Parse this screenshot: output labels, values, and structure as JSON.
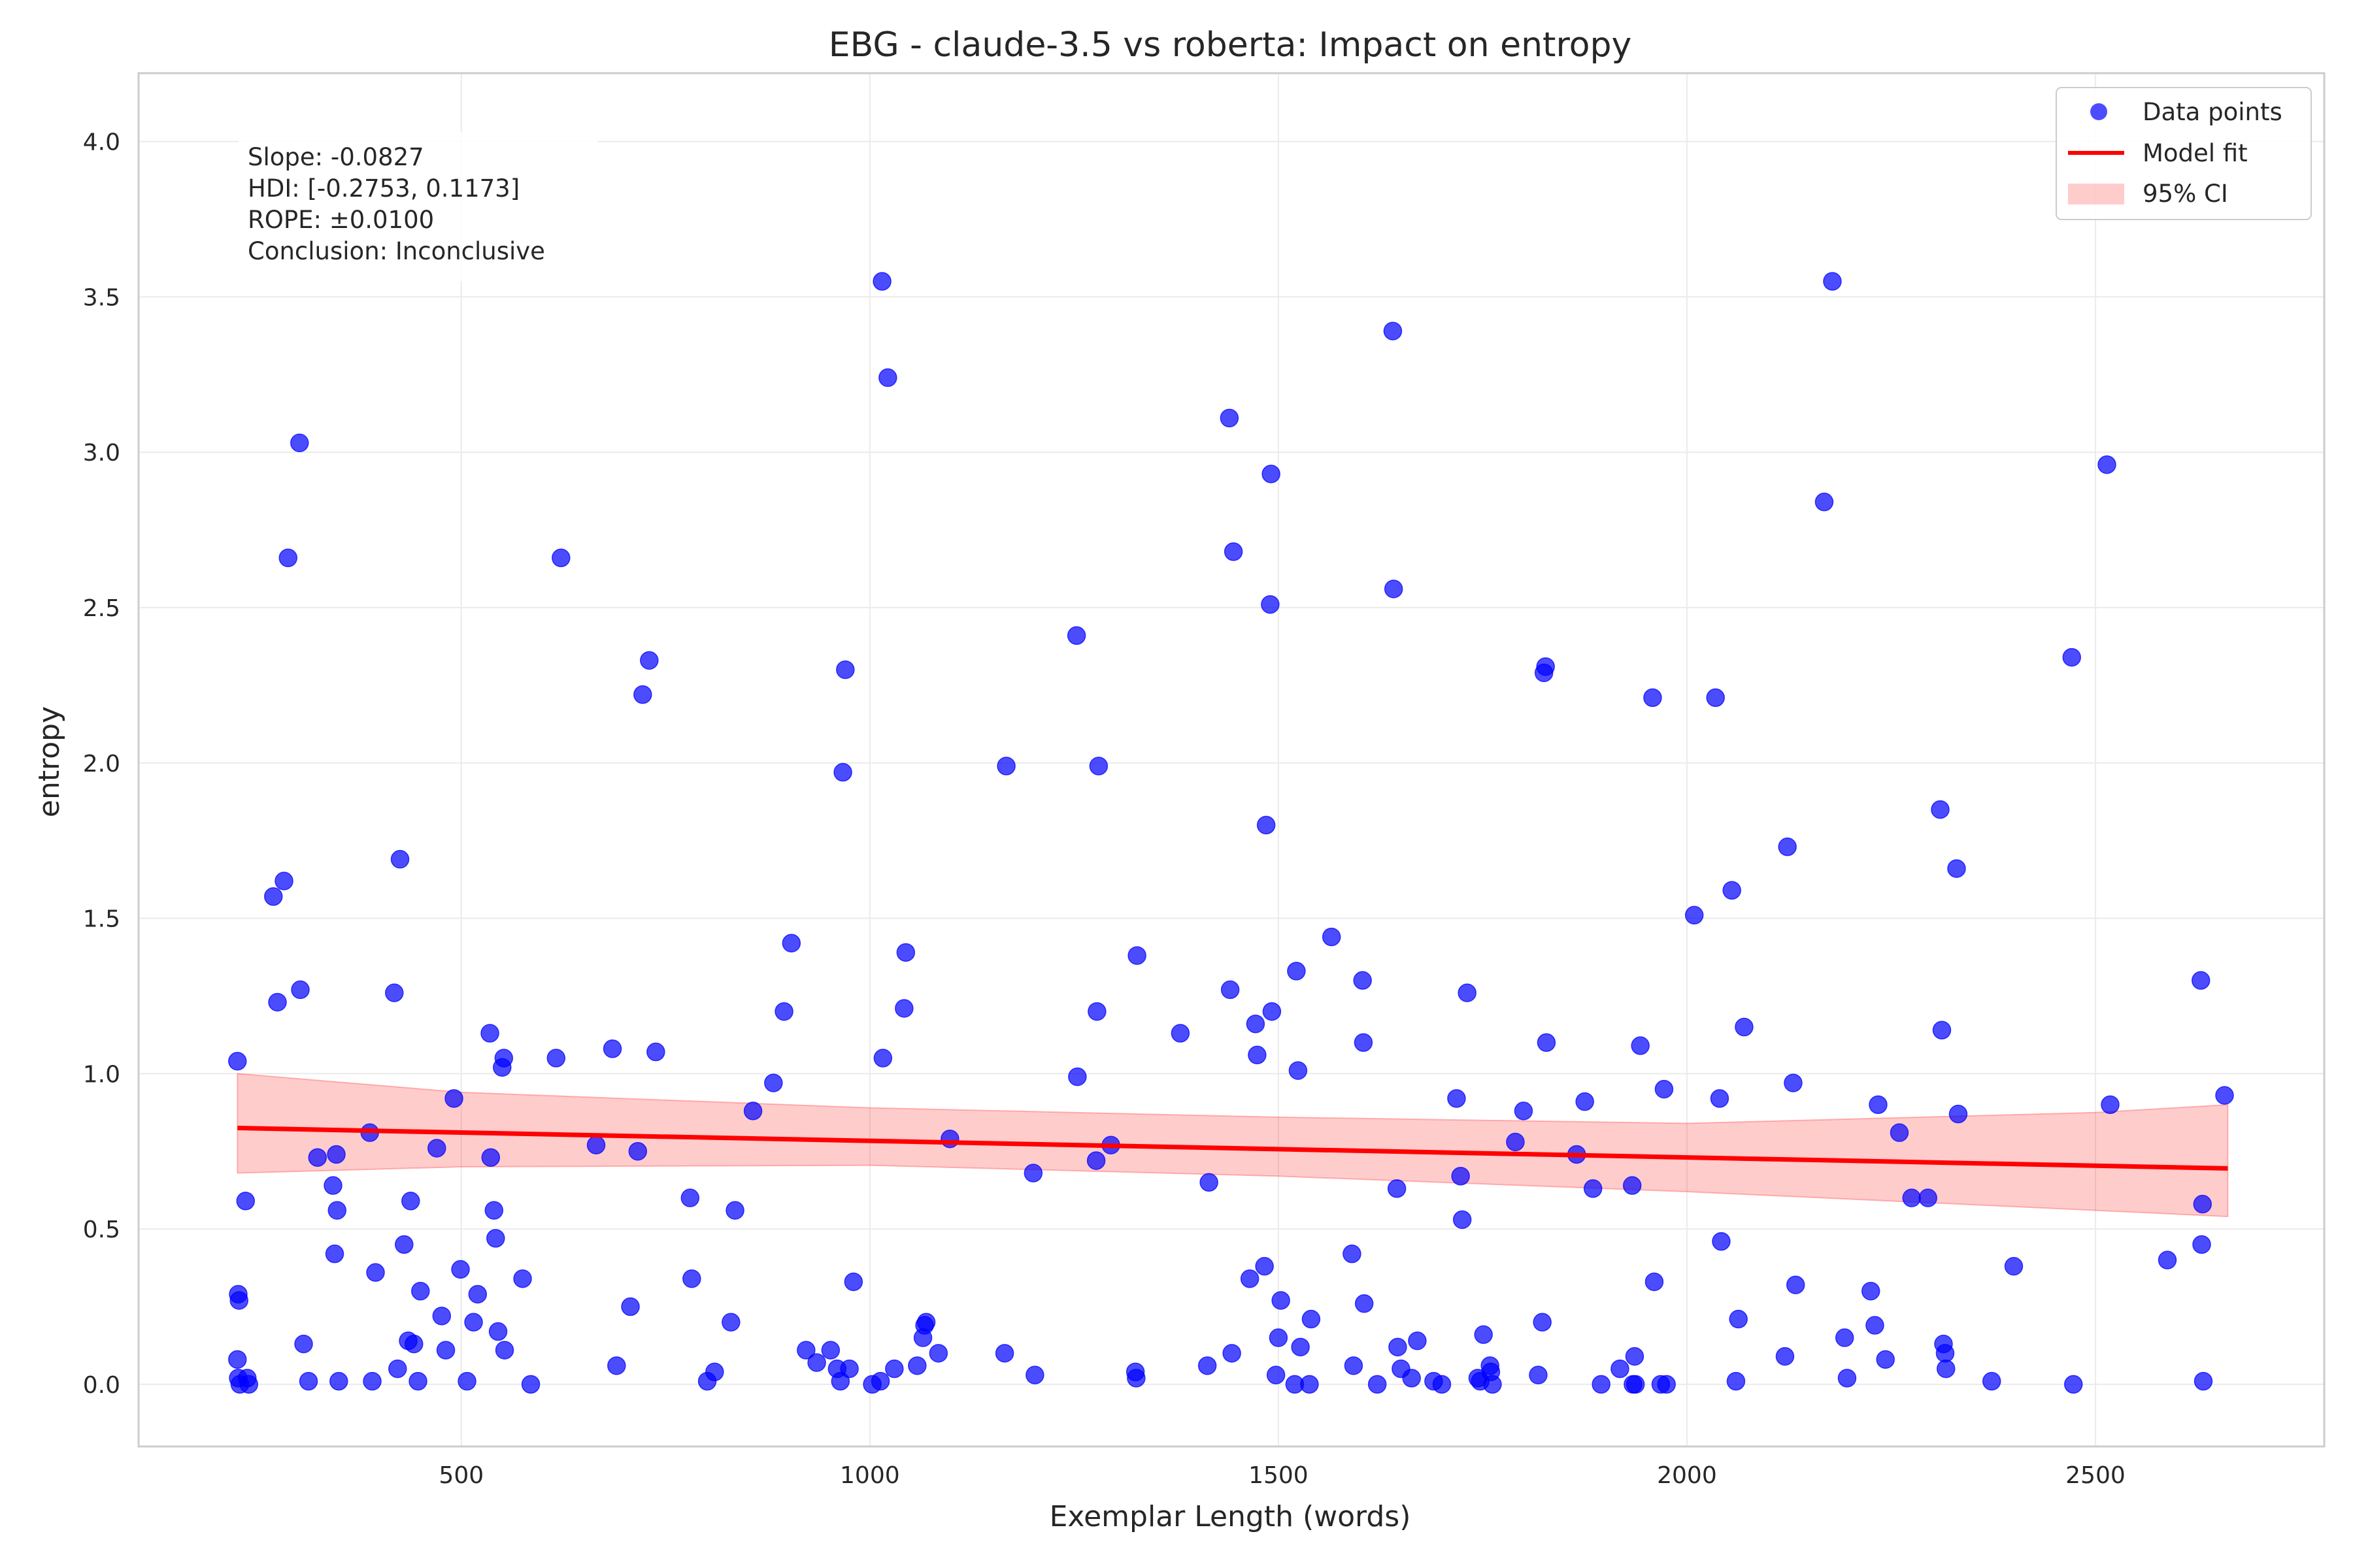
{
  "chart_data": {
    "type": "scatter",
    "title": "EBG - claude-3.5 vs roberta: Impact on entropy",
    "xlabel": "Exemplar Length (words)",
    "ylabel": "entropy",
    "xlim": [
      105,
      2780
    ],
    "ylim": [
      -0.2,
      4.22
    ],
    "xticks": [
      500,
      1000,
      1500,
      2000,
      2500
    ],
    "xtick_labels": [
      "500",
      "1000",
      "1500",
      "2000",
      "2500"
    ],
    "yticks": [
      0.0,
      0.5,
      1.0,
      1.5,
      2.0,
      2.5,
      3.0,
      3.5,
      4.0
    ],
    "ytick_labels": [
      "0.0",
      "0.5",
      "1.0",
      "1.5",
      "2.0",
      "2.5",
      "3.0",
      "3.5",
      "4.0"
    ],
    "grid": true,
    "legend_position": "top-right",
    "legend": [
      "Data points",
      "Model fit",
      "95% CI"
    ],
    "annotation": [
      "Slope: -0.0827",
      "HDI: [-0.2753, 0.1173]",
      "ROPE: ±0.0100",
      "Conclusion: Inconclusive"
    ],
    "colors": {
      "points": "#0000ff",
      "fit": "#ff0000",
      "ci": "#ff0000"
    },
    "fit_line": {
      "x": [
        226,
        2662
      ],
      "y": [
        0.825,
        0.695
      ]
    },
    "ci_band": {
      "x": [
        226,
        500,
        1000,
        1500,
        2000,
        2500,
        2662
      ],
      "upper": [
        1.0,
        0.94,
        0.89,
        0.86,
        0.84,
        0.875,
        0.9
      ],
      "lower": [
        0.68,
        0.7,
        0.705,
        0.67,
        0.62,
        0.56,
        0.54
      ]
    },
    "series": [
      {
        "name": "Data points",
        "points": [
          [
            226,
            1.04
          ],
          [
            227,
            0.29
          ],
          [
            228,
            0.27
          ],
          [
            226,
            0.08
          ],
          [
            227,
            0.02
          ],
          [
            229,
            0.0
          ],
          [
            236,
            0.59
          ],
          [
            238,
            0.02
          ],
          [
            240,
            0.0
          ],
          [
            270,
            1.57
          ],
          [
            275,
            1.23
          ],
          [
            283,
            1.62
          ],
          [
            288,
            2.66
          ],
          [
            302,
            3.03
          ],
          [
            303,
            1.27
          ],
          [
            307,
            0.13
          ],
          [
            313,
            0.01
          ],
          [
            324,
            0.73
          ],
          [
            343,
            0.64
          ],
          [
            345,
            0.42
          ],
          [
            347,
            0.74
          ],
          [
            348,
            0.56
          ],
          [
            350,
            0.01
          ],
          [
            388,
            0.81
          ],
          [
            391,
            0.01
          ],
          [
            395,
            0.36
          ],
          [
            418,
            1.26
          ],
          [
            422,
            0.05
          ],
          [
            425,
            1.69
          ],
          [
            430,
            0.45
          ],
          [
            435,
            0.14
          ],
          [
            438,
            0.59
          ],
          [
            442,
            0.13
          ],
          [
            447,
            0.01
          ],
          [
            450,
            0.3
          ],
          [
            470,
            0.76
          ],
          [
            476,
            0.22
          ],
          [
            481,
            0.11
          ],
          [
            491,
            0.92
          ],
          [
            499,
            0.37
          ],
          [
            507,
            0.01
          ],
          [
            515,
            0.2
          ],
          [
            520,
            0.29
          ],
          [
            535,
            1.13
          ],
          [
            536,
            0.73
          ],
          [
            540,
            0.56
          ],
          [
            542,
            0.47
          ],
          [
            545,
            0.17
          ],
          [
            550,
            1.02
          ],
          [
            552,
            1.05
          ],
          [
            553,
            0.11
          ],
          [
            575,
            0.34
          ],
          [
            585,
            0.0
          ],
          [
            616,
            1.05
          ],
          [
            622,
            2.66
          ],
          [
            665,
            0.77
          ],
          [
            685,
            1.08
          ],
          [
            690,
            0.06
          ],
          [
            707,
            0.25
          ],
          [
            716,
            0.75
          ],
          [
            722,
            2.22
          ],
          [
            730,
            2.33
          ],
          [
            738,
            1.07
          ],
          [
            780,
            0.6
          ],
          [
            782,
            0.34
          ],
          [
            801,
            0.01
          ],
          [
            810,
            0.04
          ],
          [
            830,
            0.2
          ],
          [
            835,
            0.56
          ],
          [
            857,
            0.88
          ],
          [
            882,
            0.97
          ],
          [
            895,
            1.2
          ],
          [
            904,
            1.42
          ],
          [
            922,
            0.11
          ],
          [
            935,
            0.07
          ],
          [
            952,
            0.11
          ],
          [
            960,
            0.05
          ],
          [
            964,
            0.01
          ],
          [
            967,
            1.97
          ],
          [
            970,
            2.3
          ],
          [
            975,
            0.05
          ],
          [
            980,
            0.33
          ],
          [
            1003,
            0.0
          ],
          [
            1013,
            0.01
          ],
          [
            1015,
            3.55
          ],
          [
            1016,
            1.05
          ],
          [
            1022,
            3.24
          ],
          [
            1030,
            0.05
          ],
          [
            1042,
            1.21
          ],
          [
            1044,
            1.39
          ],
          [
            1058,
            0.06
          ],
          [
            1065,
            0.15
          ],
          [
            1067,
            0.19
          ],
          [
            1069,
            0.2
          ],
          [
            1084,
            0.1
          ],
          [
            1098,
            0.79
          ],
          [
            1165,
            0.1
          ],
          [
            1167,
            1.99
          ],
          [
            1200,
            0.68
          ],
          [
            1202,
            0.03
          ],
          [
            1253,
            2.41
          ],
          [
            1254,
            0.99
          ],
          [
            1277,
            0.72
          ],
          [
            1278,
            1.2
          ],
          [
            1280,
            1.99
          ],
          [
            1295,
            0.77
          ],
          [
            1325,
            0.04
          ],
          [
            1326,
            0.02
          ],
          [
            1327,
            1.38
          ],
          [
            1380,
            1.13
          ],
          [
            1413,
            0.06
          ],
          [
            1415,
            0.65
          ],
          [
            1440,
            3.11
          ],
          [
            1441,
            1.27
          ],
          [
            1443,
            0.1
          ],
          [
            1445,
            2.68
          ],
          [
            1465,
            0.34
          ],
          [
            1472,
            1.16
          ],
          [
            1474,
            1.06
          ],
          [
            1483,
            0.38
          ],
          [
            1485,
            1.8
          ],
          [
            1490,
            2.51
          ],
          [
            1491,
            2.93
          ],
          [
            1492,
            1.2
          ],
          [
            1497,
            0.03
          ],
          [
            1500,
            0.15
          ],
          [
            1503,
            0.27
          ],
          [
            1520,
            0.0
          ],
          [
            1522,
            1.33
          ],
          [
            1524,
            1.01
          ],
          [
            1527,
            0.12
          ],
          [
            1538,
            0.0
          ],
          [
            1540,
            0.21
          ],
          [
            1565,
            1.44
          ],
          [
            1590,
            0.42
          ],
          [
            1592,
            0.06
          ],
          [
            1603,
            1.3
          ],
          [
            1604,
            1.1
          ],
          [
            1605,
            0.26
          ],
          [
            1621,
            0.0
          ],
          [
            1640,
            3.39
          ],
          [
            1641,
            2.56
          ],
          [
            1645,
            0.63
          ],
          [
            1646,
            0.12
          ],
          [
            1650,
            0.05
          ],
          [
            1663,
            0.02
          ],
          [
            1670,
            0.14
          ],
          [
            1690,
            0.01
          ],
          [
            1700,
            0.0
          ],
          [
            1718,
            0.92
          ],
          [
            1723,
            0.67
          ],
          [
            1725,
            0.53
          ],
          [
            1731,
            1.26
          ],
          [
            1744,
            0.02
          ],
          [
            1747,
            0.01
          ],
          [
            1751,
            0.16
          ],
          [
            1759,
            0.06
          ],
          [
            1760,
            0.04
          ],
          [
            1762,
            0.0
          ],
          [
            1790,
            0.78
          ],
          [
            1800,
            0.88
          ],
          [
            1818,
            0.03
          ],
          [
            1823,
            0.2
          ],
          [
            1825,
            2.29
          ],
          [
            1827,
            2.31
          ],
          [
            1828,
            1.1
          ],
          [
            1865,
            0.74
          ],
          [
            1875,
            0.91
          ],
          [
            1885,
            0.63
          ],
          [
            1895,
            0.0
          ],
          [
            1918,
            0.05
          ],
          [
            1933,
            0.64
          ],
          [
            1934,
            0.0
          ],
          [
            1936,
            0.09
          ],
          [
            1937,
            0.0
          ],
          [
            1943,
            1.09
          ],
          [
            1958,
            2.21
          ],
          [
            1960,
            0.33
          ],
          [
            1968,
            0.0
          ],
          [
            1972,
            0.95
          ],
          [
            1975,
            0.0
          ],
          [
            2009,
            1.51
          ],
          [
            2035,
            2.21
          ],
          [
            2040,
            0.92
          ],
          [
            2042,
            0.46
          ],
          [
            2055,
            1.59
          ],
          [
            2060,
            0.01
          ],
          [
            2063,
            0.21
          ],
          [
            2070,
            1.15
          ],
          [
            2120,
            0.09
          ],
          [
            2123,
            1.73
          ],
          [
            2130,
            0.97
          ],
          [
            2133,
            0.32
          ],
          [
            2168,
            2.84
          ],
          [
            2178,
            3.55
          ],
          [
            2193,
            0.15
          ],
          [
            2196,
            0.02
          ],
          [
            2225,
            0.3
          ],
          [
            2230,
            0.19
          ],
          [
            2234,
            0.9
          ],
          [
            2243,
            0.08
          ],
          [
            2260,
            0.81
          ],
          [
            2275,
            0.6
          ],
          [
            2295,
            0.6
          ],
          [
            2310,
            1.85
          ],
          [
            2312,
            1.14
          ],
          [
            2314,
            0.13
          ],
          [
            2316,
            0.1
          ],
          [
            2317,
            0.05
          ],
          [
            2330,
            1.66
          ],
          [
            2332,
            0.87
          ],
          [
            2373,
            0.01
          ],
          [
            2400,
            0.38
          ],
          [
            2471,
            2.34
          ],
          [
            2473,
            0.0
          ],
          [
            2514,
            2.96
          ],
          [
            2518,
            0.9
          ],
          [
            2588,
            0.4
          ],
          [
            2629,
            1.3
          ],
          [
            2630,
            0.45
          ],
          [
            2631,
            0.58
          ],
          [
            2632,
            0.01
          ],
          [
            2658,
            0.93
          ]
        ]
      }
    ]
  }
}
